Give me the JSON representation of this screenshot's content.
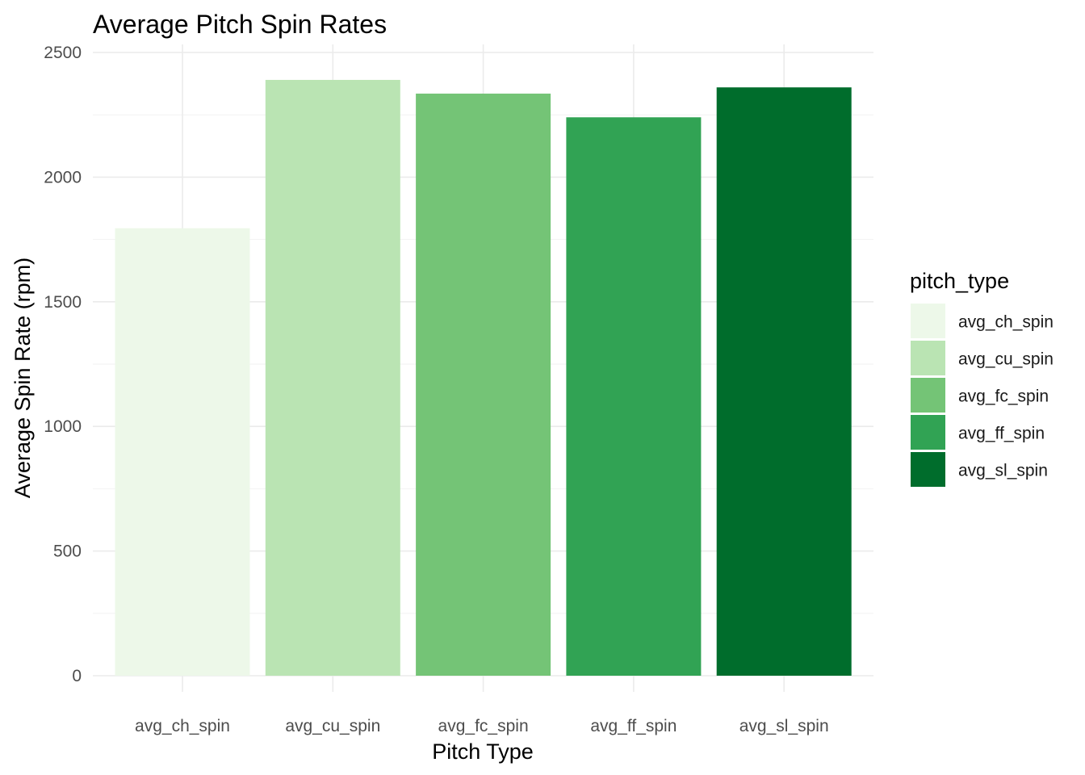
{
  "chart_data": {
    "type": "bar",
    "title": "Average Pitch Spin Rates",
    "xlabel": "Pitch Type",
    "ylabel": "Average Spin Rate (rpm)",
    "categories": [
      "avg_ch_spin",
      "avg_cu_spin",
      "avg_fc_spin",
      "avg_ff_spin",
      "avg_sl_spin"
    ],
    "values": [
      1795,
      2390,
      2335,
      2240,
      2360
    ],
    "colors": [
      "#edf8e9",
      "#bae4b3",
      "#74c476",
      "#31a354",
      "#006d2c"
    ],
    "ylim": [
      0,
      2500
    ],
    "yticks": [
      0,
      500,
      1000,
      1500,
      2000,
      2500
    ],
    "grid": true,
    "legend": {
      "title": "pitch_type",
      "position": "right",
      "entries": [
        "avg_ch_spin",
        "avg_cu_spin",
        "avg_fc_spin",
        "avg_ff_spin",
        "avg_sl_spin"
      ]
    }
  }
}
